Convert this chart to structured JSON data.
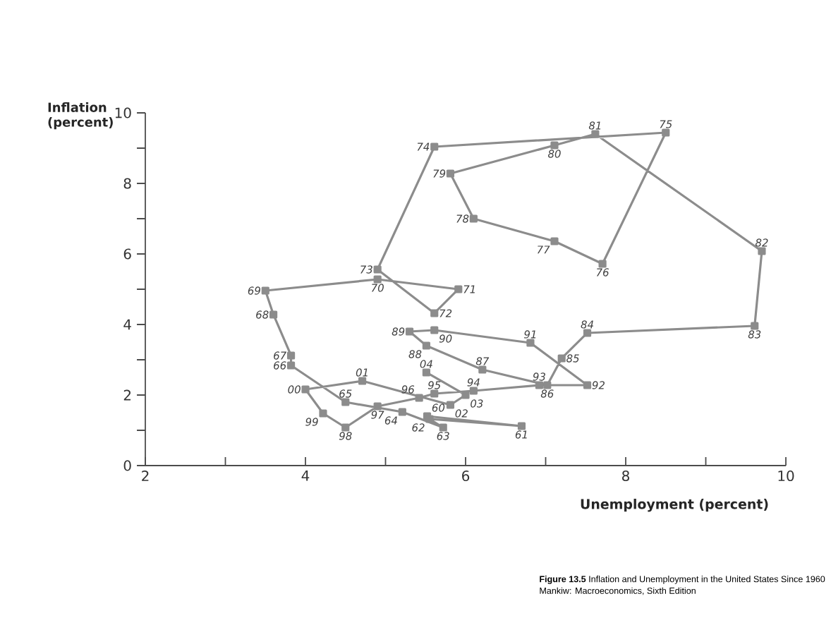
{
  "chart_data": {
    "type": "line",
    "title": "**Figure 13.5** Inflation and Unemployment in the United States Since 1960",
    "xlabel": "Unemployment (percent)",
    "ylabel": "Inflation (percent)",
    "annotations": [
      {
        "text": "60",
        "x": 5.52,
        "y": 1.4
      },
      {
        "text": "61",
        "x": 6.7,
        "y": 1.12
      },
      {
        "text": "62",
        "x": 5.55,
        "y": 1.32
      },
      {
        "text": "63",
        "x": 5.72,
        "y": 1.08
      },
      {
        "text": "64",
        "x": 5.21,
        "y": 1.52
      },
      {
        "text": "65",
        "x": 4.5,
        "y": 1.8
      },
      {
        "text": "66",
        "x": 3.82,
        "y": 2.84
      },
      {
        "text": "67",
        "x": 3.82,
        "y": 3.12
      },
      {
        "text": "68",
        "x": 3.6,
        "y": 4.28
      },
      {
        "text": "69",
        "x": 3.5,
        "y": 4.96
      },
      {
        "text": "70",
        "x": 4.9,
        "y": 5.28
      },
      {
        "text": "71",
        "x": 5.91,
        "y": 5.0
      },
      {
        "text": "72",
        "x": 5.61,
        "y": 4.32
      },
      {
        "text": "73",
        "x": 4.9,
        "y": 5.56
      },
      {
        "text": "74",
        "x": 5.61,
        "y": 9.04
      },
      {
        "text": "75",
        "x": 8.5,
        "y": 9.44
      },
      {
        "text": "76",
        "x": 7.71,
        "y": 5.72
      },
      {
        "text": "77",
        "x": 7.11,
        "y": 6.36
      },
      {
        "text": "78",
        "x": 6.1,
        "y": 7.0
      },
      {
        "text": "79",
        "x": 5.81,
        "y": 8.28
      },
      {
        "text": "80",
        "x": 7.11,
        "y": 9.08
      },
      {
        "text": "81",
        "x": 7.62,
        "y": 9.4
      },
      {
        "text": "82",
        "x": 9.7,
        "y": 6.08
      },
      {
        "text": "83",
        "x": 9.61,
        "y": 3.96
      },
      {
        "text": "84",
        "x": 7.52,
        "y": 3.76
      },
      {
        "text": "85",
        "x": 7.2,
        "y": 3.04
      },
      {
        "text": "86",
        "x": 7.02,
        "y": 2.28
      },
      {
        "text": "87",
        "x": 6.21,
        "y": 2.72
      },
      {
        "text": "88",
        "x": 5.51,
        "y": 3.4
      },
      {
        "text": "89",
        "x": 5.3,
        "y": 3.8
      },
      {
        "text": "90",
        "x": 5.61,
        "y": 3.84
      },
      {
        "text": "91",
        "x": 6.81,
        "y": 3.48
      },
      {
        "text": "92",
        "x": 7.52,
        "y": 2.28
      },
      {
        "text": "93",
        "x": 6.92,
        "y": 2.28
      },
      {
        "text": "94",
        "x": 6.1,
        "y": 2.12
      },
      {
        "text": "95",
        "x": 5.61,
        "y": 2.04
      },
      {
        "text": "96",
        "x": 5.42,
        "y": 1.92
      },
      {
        "text": "97",
        "x": 4.9,
        "y": 1.68
      },
      {
        "text": "98",
        "x": 4.5,
        "y": 1.08
      },
      {
        "text": "99",
        "x": 4.22,
        "y": 1.48
      },
      {
        "text": "00",
        "x": 4.0,
        "y": 2.16
      },
      {
        "text": "01",
        "x": 4.71,
        "y": 2.4
      },
      {
        "text": "02",
        "x": 5.81,
        "y": 1.72
      },
      {
        "text": "03",
        "x": 6.0,
        "y": 2.0
      },
      {
        "text": "04",
        "x": 5.51,
        "y": 2.64
      },
      "Mankiw: Macroeconomics, Sixth Edition"
    ],
    "x": [
      5.52,
      6.7,
      5.55,
      5.72,
      5.21,
      4.5,
      3.82,
      3.82,
      3.6,
      3.5,
      4.9,
      5.91,
      5.61,
      4.9,
      5.61,
      8.5,
      7.71,
      7.11,
      6.1,
      5.81,
      7.11,
      7.62,
      9.7,
      9.61,
      7.52,
      7.2,
      7.02,
      6.21,
      5.51,
      5.3,
      5.61,
      6.81,
      7.52,
      6.92,
      6.1,
      5.61,
      5.42,
      4.9,
      4.5,
      4.22,
      4.0,
      4.71,
      5.81,
      6.0,
      5.51
    ],
    "values": [
      1.4,
      1.12,
      1.32,
      1.08,
      1.52,
      1.8,
      2.84,
      3.12,
      4.28,
      4.96,
      5.28,
      5.0,
      4.32,
      5.56,
      9.04,
      9.44,
      5.72,
      6.36,
      7.0,
      8.28,
      9.08,
      9.4,
      6.08,
      3.96,
      3.76,
      3.04,
      2.28,
      2.72,
      3.4,
      3.8,
      3.84,
      3.48,
      2.28,
      2.28,
      2.12,
      2.04,
      1.92,
      1.68,
      1.08,
      1.48,
      2.16,
      2.4,
      1.72,
      2.0,
      2.64
    ],
    "color": "#8c8c8c",
    "marker": "square",
    "line_style": "solid",
    "xlim": [
      2,
      10
    ],
    "xticks": [
      2,
      {
        "value": 3,
        "label": null
      },
      4,
      {
        "value": 5,
        "label": null
      },
      6,
      {
        "value": 7,
        "label": null
      },
      8,
      {
        "value": 9,
        "label": null
      },
      10
    ],
    "ylim": [
      0,
      10
    ],
    "yticks": [
      0,
      {
        "value": 1,
        "label": null
      },
      2,
      {
        "value": 3,
        "label": null
      },
      4,
      {
        "value": 5,
        "label": null
      },
      6,
      {
        "value": 7,
        "label": null
      },
      8,
      {
        "value": 9,
        "label": null
      },
      10
    ]
  }
}
